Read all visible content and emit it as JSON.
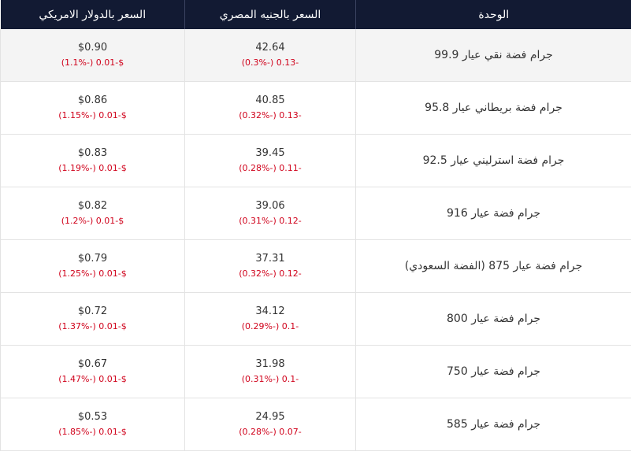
{
  "header": {
    "unit": "الوحدة",
    "egp": "السعر بالجنيه المصري",
    "usd": "السعر بالدولار الامريكي"
  },
  "colors": {
    "header_bg": "#121a33",
    "negative": "#d0021b"
  },
  "rows": [
    {
      "unit": "جرام فضة نقي عيار 99.9",
      "egp": "42.64",
      "egp_change": "-0.13 (-0.3%)",
      "usd": "$0.90",
      "usd_change": "$-0.01 (-1.1%)"
    },
    {
      "unit": "جرام فضة بريطاني عيار 95.8",
      "egp": "40.85",
      "egp_change": "-0.13 (-0.32%)",
      "usd": "$0.86",
      "usd_change": "$-0.01 (-1.15%)"
    },
    {
      "unit": "جرام فضة استرليني عيار 92.5",
      "egp": "39.45",
      "egp_change": "-0.11 (-0.28%)",
      "usd": "$0.83",
      "usd_change": "$-0.01 (-1.19%)"
    },
    {
      "unit": "جرام فضة عيار 916",
      "egp": "39.06",
      "egp_change": "-0.12 (-0.31%)",
      "usd": "$0.82",
      "usd_change": "$-0.01 (-1.2%)"
    },
    {
      "unit": "جرام فضة عيار 875 (الفضة السعودي)",
      "egp": "37.31",
      "egp_change": "-0.12 (-0.32%)",
      "usd": "$0.79",
      "usd_change": "$-0.01 (-1.25%)"
    },
    {
      "unit": "جرام فضة عيار 800",
      "egp": "34.12",
      "egp_change": "-0.1 (-0.29%)",
      "usd": "$0.72",
      "usd_change": "$-0.01 (-1.37%)"
    },
    {
      "unit": "جرام فضة عيار 750",
      "egp": "31.98",
      "egp_change": "-0.1 (-0.31%)",
      "usd": "$0.67",
      "usd_change": "$-0.01 (-1.47%)"
    },
    {
      "unit": "جرام فضة عيار 585",
      "egp": "24.95",
      "egp_change": "-0.07 (-0.28%)",
      "usd": "$0.53",
      "usd_change": "$-0.01 (-1.85%)"
    }
  ]
}
